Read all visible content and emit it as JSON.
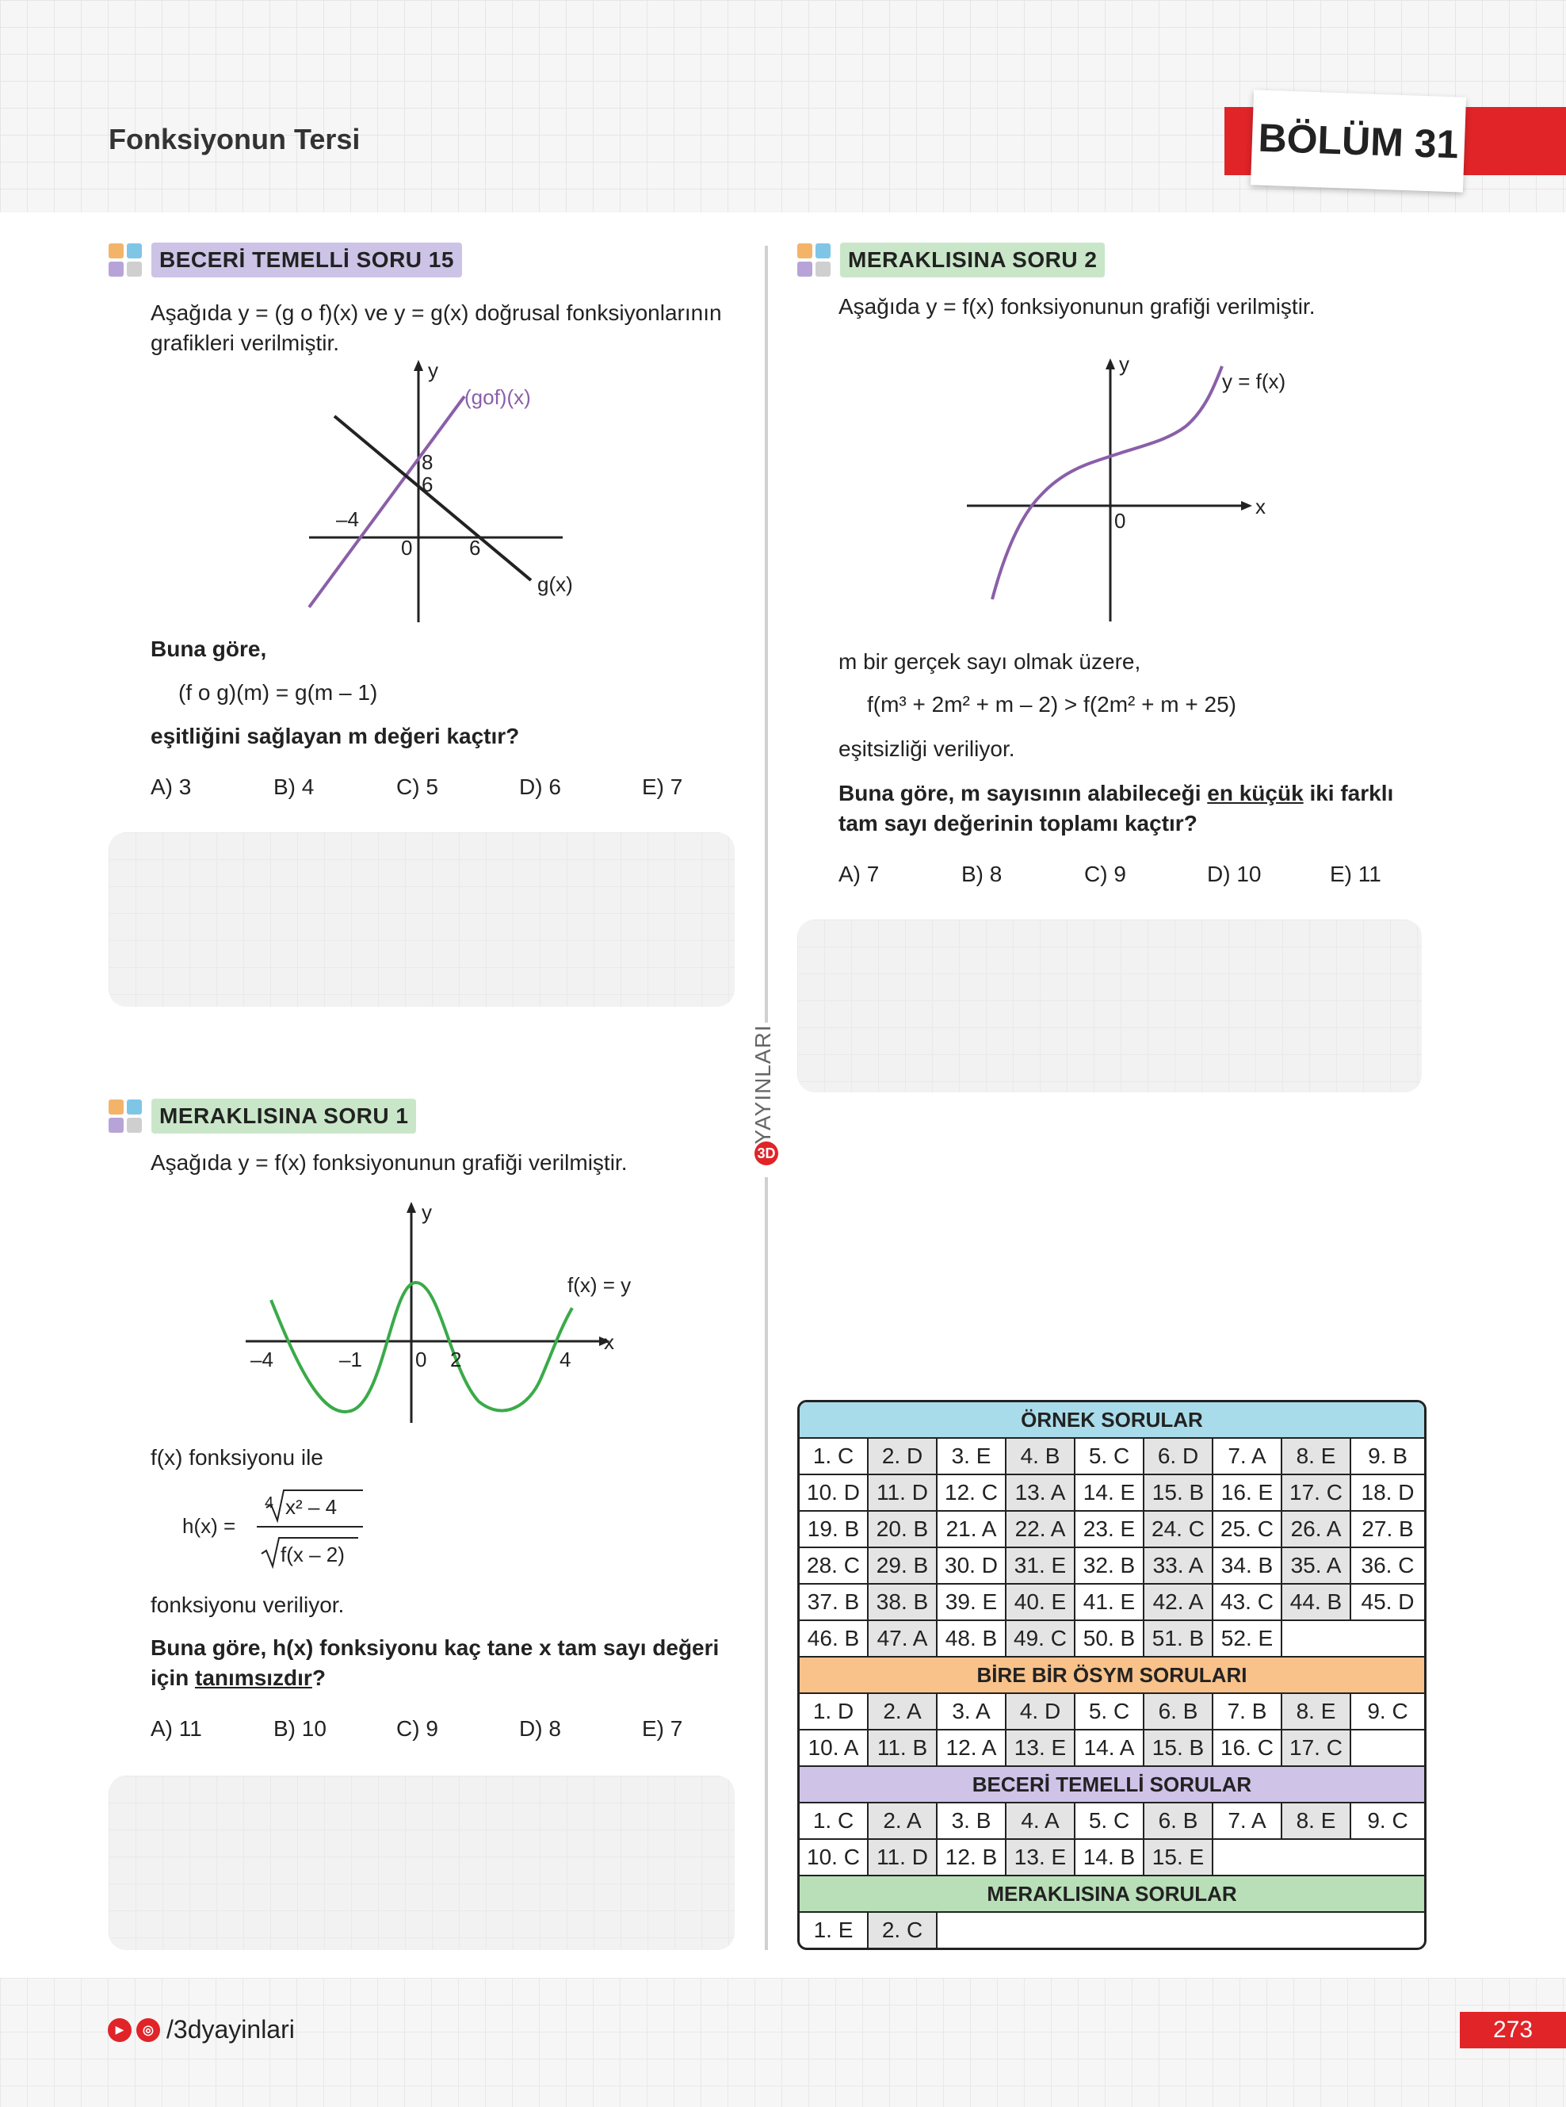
{
  "header": {
    "title": "Fonksiyonun Tersi",
    "chapter": "BÖLÜM 31"
  },
  "brand": {
    "vertical_text": "YAYINLARI",
    "logo": "3D"
  },
  "q1": {
    "badge": "BECERİ TEMELLİ SORU 15",
    "intro1": "Aşağıda y = (g o f)(x) ve y = g(x) doğrusal fonksiyonlarının",
    "intro2": "grafikleri verilmiştir.",
    "graph": {
      "y_label": "y",
      "gof_label": "(gof)(x)",
      "g_label": "g(x)",
      "t8": "8",
      "t6y": "6",
      "tm4": "–4",
      "t0": "0",
      "t6x": "6"
    },
    "lead": "Buna göre,",
    "equation": "(f o g)(m) = g(m – 1)",
    "question": "eşitliğini sağlayan m değeri kaçtır?",
    "options": [
      "A) 3",
      "B) 4",
      "C) 5",
      "D) 6",
      "E) 7"
    ]
  },
  "q2": {
    "badge": "MERAKLISINA SORU 1",
    "intro": "Aşağıda y = f(x) fonksiyonunun grafiği verilmiştir.",
    "graph": {
      "y_label": "y",
      "x_label": "x",
      "curve_label": "f(x) = y",
      "tm4": "–4",
      "tm1": "–1",
      "t0": "0",
      "t2": "2",
      "t4": "4"
    },
    "line1": "f(x) fonksiyonu ile",
    "h_lhs": "h(x) =",
    "h_index": "4",
    "h_num": "x² – 4",
    "h_den": "f(x – 2)",
    "line2": "fonksiyonu veriliyor.",
    "question1_a": "Buna göre, h(x) fonksiyonu kaç tane x tam sayı değeri",
    "question2_a": "için ",
    "question2_u": "tanımsızdır",
    "question2_b": "?",
    "options": [
      "A) 11",
      "B) 10",
      "C) 9",
      "D) 8",
      "E) 7"
    ]
  },
  "q3": {
    "badge": "MERAKLISINA SORU 2",
    "intro": "Aşağıda y = f(x) fonksiyonunun grafiği verilmiştir.",
    "graph": {
      "y_label": "y",
      "x_label": "x",
      "curve_label": "y = f(x)",
      "t0": "0"
    },
    "line1": "m bir gerçek sayı olmak üzere,",
    "inequality": "f(m³ + 2m² + m – 2) > f(2m² + m + 25)",
    "line2": "eşitsizliği veriliyor.",
    "question1_a": "Buna göre, m sayısının alabileceği ",
    "question1_u": "en küçük",
    "question1_b": " iki farklı",
    "question2": "tam sayı değerinin toplamı kaçtır?",
    "options": [
      "A) 7",
      "B) 8",
      "C) 9",
      "D) 10",
      "E) 11"
    ]
  },
  "answers": {
    "ornek": {
      "title": "ÖRNEK SORULAR",
      "rows": [
        [
          "1. C",
          "2. D",
          "3. E",
          "4. B",
          "5. C",
          "6. D",
          "7. A",
          "8. E",
          "9. B"
        ],
        [
          "10. D",
          "11. D",
          "12. C",
          "13. A",
          "14. E",
          "15. B",
          "16. E",
          "17. C",
          "18. D"
        ],
        [
          "19. B",
          "20. B",
          "21. A",
          "22. A",
          "23. E",
          "24. C",
          "25. C",
          "26. A",
          "27. B"
        ],
        [
          "28. C",
          "29. B",
          "30. D",
          "31. E",
          "32. B",
          "33. A",
          "34. B",
          "35. A",
          "36. C"
        ],
        [
          "37. B",
          "38. B",
          "39. E",
          "40. E",
          "41. E",
          "42. A",
          "43. C",
          "44. B",
          "45. D"
        ],
        [
          "46. B",
          "47. A",
          "48. B",
          "49. C",
          "50. B",
          "51. B",
          "52. E"
        ]
      ]
    },
    "birebir": {
      "title": "BİRE BİR ÖSYM SORULARI",
      "rows": [
        [
          "1. D",
          "2. A",
          "3. A",
          "4. D",
          "5. C",
          "6. B",
          "7. B",
          "8. E",
          "9. C"
        ],
        [
          "10. A",
          "11. B",
          "12. A",
          "13. E",
          "14. A",
          "15. B",
          "16. C",
          "17. C"
        ]
      ]
    },
    "beceri": {
      "title": "BECERİ TEMELLİ SORULAR",
      "rows": [
        [
          "1. C",
          "2. A",
          "3. B",
          "4. A",
          "5. C",
          "6. B",
          "7. A",
          "8. E",
          "9. C"
        ],
        [
          "10. C",
          "11. D",
          "12. B",
          "13. E",
          "14. B",
          "15. E"
        ]
      ]
    },
    "meraklisina": {
      "title": "MERAKLISINA SORULAR",
      "rows": [
        [
          "1. E",
          "2. C"
        ]
      ]
    }
  },
  "footer": {
    "handle": "/3dyayinlari",
    "page": "273"
  },
  "colors": {
    "red": "#e02428",
    "ornek": "#a9dcea",
    "birebir": "#f8c28a",
    "beceri": "#cfc3e8",
    "meraklisina": "#b8dfb7",
    "curve": "#8a5fa8",
    "green_curve": "#3aaa48"
  }
}
